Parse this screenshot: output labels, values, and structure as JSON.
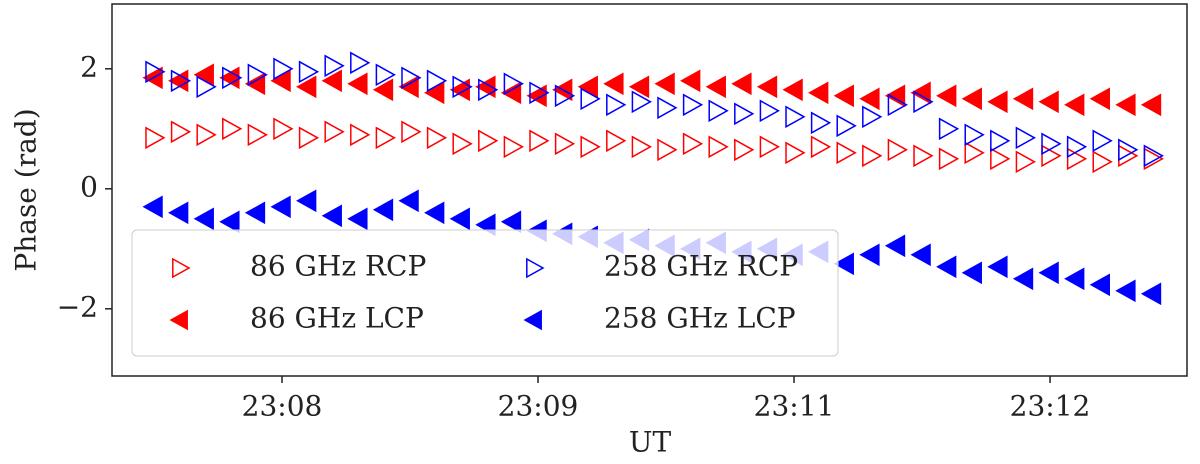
{
  "chart_data": {
    "type": "scatter",
    "x_label": "UT",
    "y_label": "Phase (rad)",
    "x": [
      0.5,
      0.6,
      0.7,
      0.8,
      0.9,
      1.0,
      1.1,
      1.2,
      1.3,
      1.4,
      1.5,
      1.6,
      1.7,
      1.8,
      1.9,
      2.0,
      2.1,
      2.2,
      2.3,
      2.4,
      2.5,
      2.6,
      2.7,
      2.8,
      2.9,
      3.0,
      3.1,
      3.2,
      3.3,
      3.4,
      3.5,
      3.6,
      3.7,
      3.8,
      3.9,
      4.0,
      4.1,
      4.2,
      4.3,
      4.4
    ],
    "xlim": [
      0.336,
      4.535
    ],
    "xticks": [
      {
        "value": 1,
        "label": "23:08"
      },
      {
        "value": 2,
        "label": "23:09"
      },
      {
        "value": 3,
        "label": "23:11"
      },
      {
        "value": 4,
        "label": "23:12"
      }
    ],
    "ylim": [
      -3.12,
      3.08
    ],
    "yticks": [
      {
        "value": -2,
        "label": "−2"
      },
      0,
      2
    ],
    "legend": "lower left",
    "series": [
      {
        "name": "86 GHz RCP",
        "color": "#ff0000",
        "marker": "triangle-right",
        "filled": false,
        "values": [
          0.85,
          0.95,
          0.9,
          1.0,
          0.9,
          1.0,
          0.85,
          0.95,
          0.9,
          0.85,
          0.95,
          0.85,
          0.75,
          0.8,
          0.7,
          0.8,
          0.75,
          0.7,
          0.8,
          0.7,
          0.65,
          0.75,
          0.7,
          0.65,
          0.7,
          0.6,
          0.7,
          0.6,
          0.55,
          0.65,
          0.55,
          0.5,
          0.6,
          0.5,
          0.45,
          0.55,
          0.5,
          0.45,
          0.55,
          0.5
        ]
      },
      {
        "name": "86 GHz LCP",
        "color": "#ff0000",
        "marker": "triangle-left",
        "filled": true,
        "values": [
          1.85,
          1.8,
          1.9,
          1.85,
          1.75,
          1.8,
          1.7,
          1.8,
          1.75,
          1.65,
          1.7,
          1.6,
          1.65,
          1.7,
          1.6,
          1.55,
          1.65,
          1.7,
          1.75,
          1.7,
          1.75,
          1.8,
          1.7,
          1.75,
          1.7,
          1.65,
          1.6,
          1.55,
          1.5,
          1.55,
          1.6,
          1.55,
          1.5,
          1.45,
          1.5,
          1.45,
          1.4,
          1.5,
          1.4,
          1.4
        ]
      },
      {
        "name": "258 GHz RCP",
        "color": "#0000ff",
        "marker": "triangle-right",
        "filled": false,
        "values": [
          1.95,
          1.8,
          1.7,
          1.85,
          1.9,
          2.0,
          1.95,
          2.05,
          2.1,
          1.9,
          1.85,
          1.8,
          1.7,
          1.65,
          1.75,
          1.6,
          1.55,
          1.5,
          1.4,
          1.45,
          1.35,
          1.4,
          1.3,
          1.25,
          1.3,
          1.2,
          1.1,
          1.05,
          1.2,
          1.4,
          1.45,
          1.0,
          0.9,
          0.8,
          0.85,
          0.75,
          0.7,
          0.8,
          0.65,
          0.55
        ]
      },
      {
        "name": "258 GHz LCP",
        "color": "#0000ff",
        "marker": "triangle-left",
        "filled": true,
        "values": [
          -0.3,
          -0.4,
          -0.5,
          -0.55,
          -0.4,
          -0.3,
          -0.2,
          -0.45,
          -0.5,
          -0.35,
          -0.2,
          -0.4,
          -0.5,
          -0.6,
          -0.55,
          -0.7,
          -0.75,
          -0.8,
          -0.9,
          -0.85,
          -0.95,
          -1.0,
          -0.9,
          -1.05,
          -1.0,
          -1.1,
          -1.05,
          -1.25,
          -1.1,
          -0.95,
          -1.1,
          -1.3,
          -1.4,
          -1.3,
          -1.5,
          -1.4,
          -1.5,
          -1.6,
          -1.7,
          -1.75
        ]
      }
    ]
  }
}
